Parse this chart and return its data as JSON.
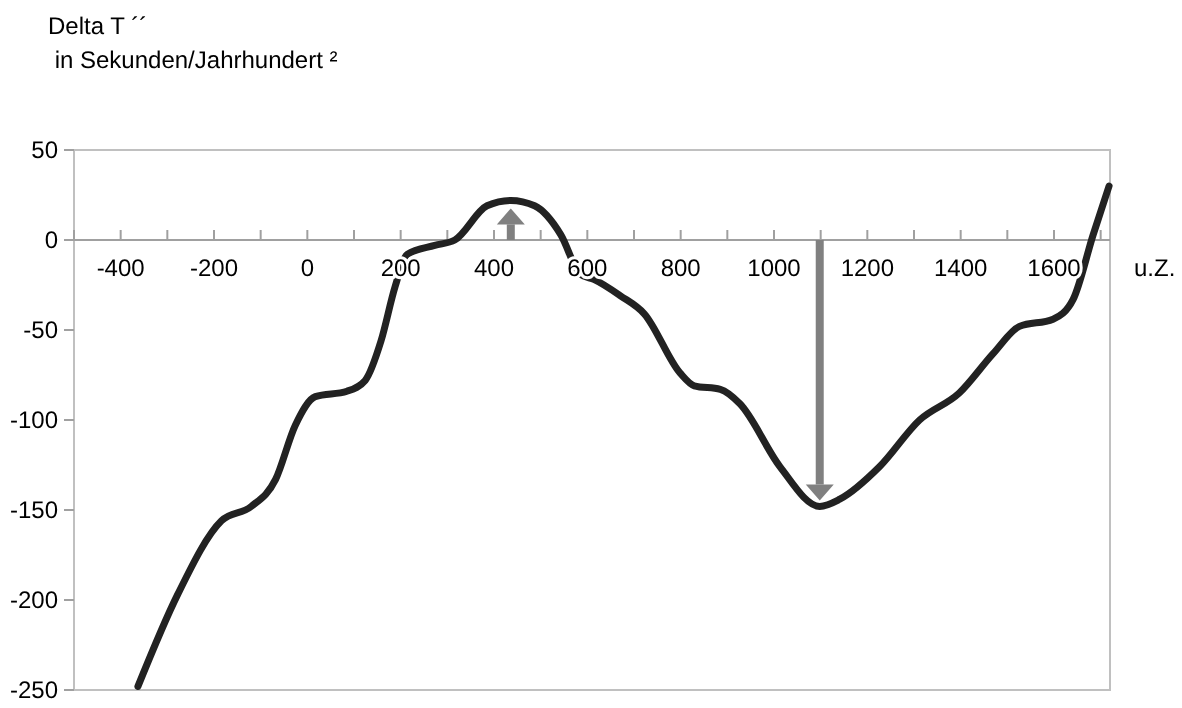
{
  "chart_data": {
    "type": "line",
    "ylabel": "Delta T ´´\n in Sekunden/Jahrhundert ²",
    "xlabel": "u.Z.",
    "x": [
      -363,
      -278,
      -184,
      -120,
      -68,
      -26,
      17,
      85,
      124,
      158,
      188,
      214,
      273,
      316,
      385,
      436,
      487,
      543,
      585,
      615,
      671,
      722,
      799,
      829,
      885,
      927,
      1013,
      1098,
      1141,
      1226,
      1312,
      1397,
      1470,
      1526,
      1598,
      1641,
      1684,
      1718
    ],
    "series": [
      {
        "color": "#222222",
        "values": [
          -248,
          -197,
          -156,
          -148,
          -133,
          -103,
          -87,
          -84,
          -78,
          -56,
          -26,
          -8,
          -3,
          0,
          19,
          22,
          19,
          3,
          -19,
          -22,
          -31,
          -41,
          -74,
          -81,
          -83,
          -91,
          -126,
          -148,
          -144,
          -126,
          -100,
          -85,
          -63,
          -48,
          -44,
          -33,
          3,
          30
        ]
      }
    ],
    "xlim": [
      -500,
      1720
    ],
    "xticks": [
      {
        "value": -500,
        "label": null
      },
      -400,
      {
        "value": -300,
        "label": null
      },
      -200,
      {
        "value": -100,
        "label": null
      },
      0,
      {
        "value": 100,
        "label": null
      },
      200,
      {
        "value": 300,
        "label": null
      },
      400,
      {
        "value": 500,
        "label": null
      },
      600,
      {
        "value": 700,
        "label": null
      },
      800,
      {
        "value": 900,
        "label": null
      },
      1000,
      {
        "value": 1100,
        "label": null
      },
      1200,
      {
        "value": 1300,
        "label": null
      },
      1400,
      {
        "value": 1500,
        "label": null
      },
      1600,
      {
        "value": 1700,
        "label": null
      }
    ],
    "ylim": [
      -250,
      50
    ],
    "yticks": [
      -250,
      -200,
      -150,
      -100,
      -50,
      0,
      50
    ],
    "grid": false,
    "marker": "none",
    "line_style": "solid"
  }
}
